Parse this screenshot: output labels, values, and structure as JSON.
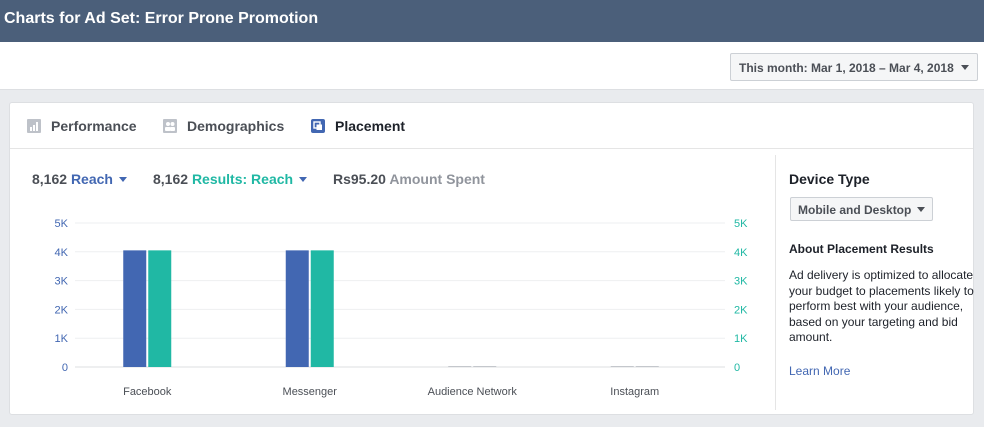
{
  "header": {
    "title": "Charts for Ad Set: Error Prone Promotion"
  },
  "date_range": {
    "label": "This month: Mar 1, 2018 – Mar 4, 2018"
  },
  "tabs": [
    {
      "label": "Performance",
      "icon": "bar-chart-icon",
      "active": false
    },
    {
      "label": "Demographics",
      "icon": "people-icon",
      "active": false
    },
    {
      "label": "Placement",
      "icon": "placement-icon",
      "active": true
    }
  ],
  "metrics": [
    {
      "value": "8,162",
      "label": "Reach",
      "color": "#4267b2",
      "dropdown": true
    },
    {
      "value": "8,162",
      "label": "Results: Reach",
      "color": "#20b8a4",
      "dropdown": true
    },
    {
      "value": "Rs95.20",
      "label": "Amount Spent",
      "color": "#90949c",
      "dropdown": false
    }
  ],
  "sidebar": {
    "device_heading": "Device Type",
    "device_selected": "Mobile and Desktop",
    "about_heading": "About Placement Results",
    "about_text": "Ad delivery is optimized to allocate your budget to placements likely to perform best with your audience, based on your targeting and bid amount.",
    "learn_more": "Learn More"
  },
  "colors": {
    "reach": "#4267b2",
    "results": "#20b8a4",
    "header": "#4b5f7a"
  },
  "chart_data": {
    "type": "bar",
    "categories": [
      "Facebook",
      "Messenger",
      "Audience Network",
      "Instagram"
    ],
    "series": [
      {
        "name": "Reach",
        "values": [
          4050,
          4050,
          0,
          0
        ]
      },
      {
        "name": "Results: Reach",
        "values": [
          4050,
          4050,
          0,
          0
        ]
      }
    ],
    "left_ticks": [
      "0",
      "1K",
      "2K",
      "3K",
      "4K",
      "5K"
    ],
    "right_ticks": [
      "0",
      "1K",
      "2K",
      "3K",
      "4K",
      "5K"
    ],
    "ylim": [
      0,
      5000
    ],
    "grid": true
  }
}
